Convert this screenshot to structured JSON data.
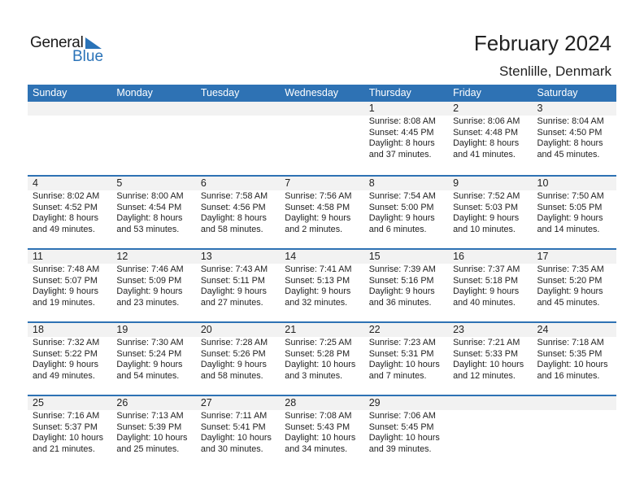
{
  "logo": {
    "general": "General",
    "blue": "Blue"
  },
  "header": {
    "title": "February 2024",
    "location": "Stenlille, Denmark"
  },
  "colors": {
    "accent": "#2e72b4",
    "band": "#f2f2f2"
  },
  "weekdays": [
    "Sunday",
    "Monday",
    "Tuesday",
    "Wednesday",
    "Thursday",
    "Friday",
    "Saturday"
  ],
  "weeks": [
    [
      null,
      null,
      null,
      null,
      {
        "day": "1",
        "sunrise": "Sunrise: 8:08 AM",
        "sunset": "Sunset: 4:45 PM",
        "daylight": "Daylight: 8 hours",
        "minutes": "and 37 minutes."
      },
      {
        "day": "2",
        "sunrise": "Sunrise: 8:06 AM",
        "sunset": "Sunset: 4:48 PM",
        "daylight": "Daylight: 8 hours",
        "minutes": "and 41 minutes."
      },
      {
        "day": "3",
        "sunrise": "Sunrise: 8:04 AM",
        "sunset": "Sunset: 4:50 PM",
        "daylight": "Daylight: 8 hours",
        "minutes": "and 45 minutes."
      }
    ],
    [
      {
        "day": "4",
        "sunrise": "Sunrise: 8:02 AM",
        "sunset": "Sunset: 4:52 PM",
        "daylight": "Daylight: 8 hours",
        "minutes": "and 49 minutes."
      },
      {
        "day": "5",
        "sunrise": "Sunrise: 8:00 AM",
        "sunset": "Sunset: 4:54 PM",
        "daylight": "Daylight: 8 hours",
        "minutes": "and 53 minutes."
      },
      {
        "day": "6",
        "sunrise": "Sunrise: 7:58 AM",
        "sunset": "Sunset: 4:56 PM",
        "daylight": "Daylight: 8 hours",
        "minutes": "and 58 minutes."
      },
      {
        "day": "7",
        "sunrise": "Sunrise: 7:56 AM",
        "sunset": "Sunset: 4:58 PM",
        "daylight": "Daylight: 9 hours",
        "minutes": "and 2 minutes."
      },
      {
        "day": "8",
        "sunrise": "Sunrise: 7:54 AM",
        "sunset": "Sunset: 5:00 PM",
        "daylight": "Daylight: 9 hours",
        "minutes": "and 6 minutes."
      },
      {
        "day": "9",
        "sunrise": "Sunrise: 7:52 AM",
        "sunset": "Sunset: 5:03 PM",
        "daylight": "Daylight: 9 hours",
        "minutes": "and 10 minutes."
      },
      {
        "day": "10",
        "sunrise": "Sunrise: 7:50 AM",
        "sunset": "Sunset: 5:05 PM",
        "daylight": "Daylight: 9 hours",
        "minutes": "and 14 minutes."
      }
    ],
    [
      {
        "day": "11",
        "sunrise": "Sunrise: 7:48 AM",
        "sunset": "Sunset: 5:07 PM",
        "daylight": "Daylight: 9 hours",
        "minutes": "and 19 minutes."
      },
      {
        "day": "12",
        "sunrise": "Sunrise: 7:46 AM",
        "sunset": "Sunset: 5:09 PM",
        "daylight": "Daylight: 9 hours",
        "minutes": "and 23 minutes."
      },
      {
        "day": "13",
        "sunrise": "Sunrise: 7:43 AM",
        "sunset": "Sunset: 5:11 PM",
        "daylight": "Daylight: 9 hours",
        "minutes": "and 27 minutes."
      },
      {
        "day": "14",
        "sunrise": "Sunrise: 7:41 AM",
        "sunset": "Sunset: 5:13 PM",
        "daylight": "Daylight: 9 hours",
        "minutes": "and 32 minutes."
      },
      {
        "day": "15",
        "sunrise": "Sunrise: 7:39 AM",
        "sunset": "Sunset: 5:16 PM",
        "daylight": "Daylight: 9 hours",
        "minutes": "and 36 minutes."
      },
      {
        "day": "16",
        "sunrise": "Sunrise: 7:37 AM",
        "sunset": "Sunset: 5:18 PM",
        "daylight": "Daylight: 9 hours",
        "minutes": "and 40 minutes."
      },
      {
        "day": "17",
        "sunrise": "Sunrise: 7:35 AM",
        "sunset": "Sunset: 5:20 PM",
        "daylight": "Daylight: 9 hours",
        "minutes": "and 45 minutes."
      }
    ],
    [
      {
        "day": "18",
        "sunrise": "Sunrise: 7:32 AM",
        "sunset": "Sunset: 5:22 PM",
        "daylight": "Daylight: 9 hours",
        "minutes": "and 49 minutes."
      },
      {
        "day": "19",
        "sunrise": "Sunrise: 7:30 AM",
        "sunset": "Sunset: 5:24 PM",
        "daylight": "Daylight: 9 hours",
        "minutes": "and 54 minutes."
      },
      {
        "day": "20",
        "sunrise": "Sunrise: 7:28 AM",
        "sunset": "Sunset: 5:26 PM",
        "daylight": "Daylight: 9 hours",
        "minutes": "and 58 minutes."
      },
      {
        "day": "21",
        "sunrise": "Sunrise: 7:25 AM",
        "sunset": "Sunset: 5:28 PM",
        "daylight": "Daylight: 10 hours",
        "minutes": "and 3 minutes."
      },
      {
        "day": "22",
        "sunrise": "Sunrise: 7:23 AM",
        "sunset": "Sunset: 5:31 PM",
        "daylight": "Daylight: 10 hours",
        "minutes": "and 7 minutes."
      },
      {
        "day": "23",
        "sunrise": "Sunrise: 7:21 AM",
        "sunset": "Sunset: 5:33 PM",
        "daylight": "Daylight: 10 hours",
        "minutes": "and 12 minutes."
      },
      {
        "day": "24",
        "sunrise": "Sunrise: 7:18 AM",
        "sunset": "Sunset: 5:35 PM",
        "daylight": "Daylight: 10 hours",
        "minutes": "and 16 minutes."
      }
    ],
    [
      {
        "day": "25",
        "sunrise": "Sunrise: 7:16 AM",
        "sunset": "Sunset: 5:37 PM",
        "daylight": "Daylight: 10 hours",
        "minutes": "and 21 minutes."
      },
      {
        "day": "26",
        "sunrise": "Sunrise: 7:13 AM",
        "sunset": "Sunset: 5:39 PM",
        "daylight": "Daylight: 10 hours",
        "minutes": "and 25 minutes."
      },
      {
        "day": "27",
        "sunrise": "Sunrise: 7:11 AM",
        "sunset": "Sunset: 5:41 PM",
        "daylight": "Daylight: 10 hours",
        "minutes": "and 30 minutes."
      },
      {
        "day": "28",
        "sunrise": "Sunrise: 7:08 AM",
        "sunset": "Sunset: 5:43 PM",
        "daylight": "Daylight: 10 hours",
        "minutes": "and 34 minutes."
      },
      {
        "day": "29",
        "sunrise": "Sunrise: 7:06 AM",
        "sunset": "Sunset: 5:45 PM",
        "daylight": "Daylight: 10 hours",
        "minutes": "and 39 minutes."
      },
      null,
      null
    ]
  ]
}
